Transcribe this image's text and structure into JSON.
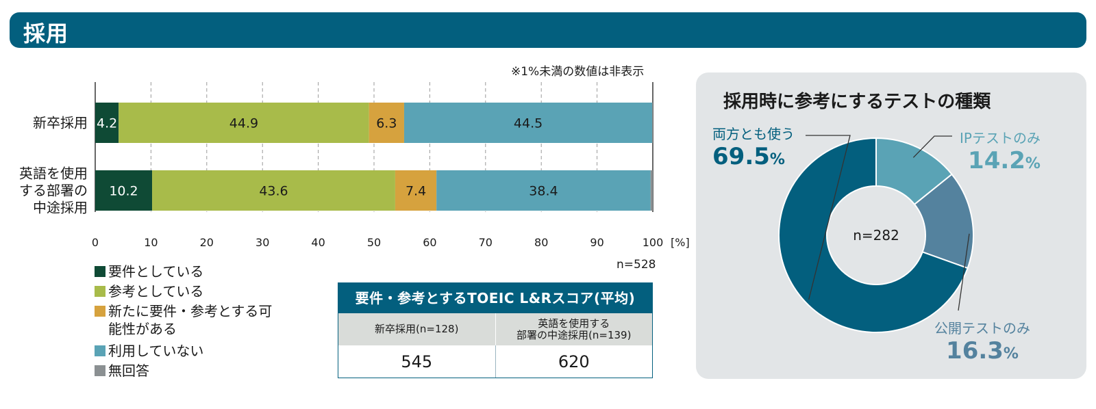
{
  "header": {
    "title": "採用"
  },
  "note": "※1%未満の数値は非表示",
  "n_label": "n=528",
  "chart_data": [
    {
      "type": "bar",
      "stacked": true,
      "orientation": "horizontal",
      "categories": [
        "新卒採用",
        "英語を使用する部署の中途採用"
      ],
      "category_lines": [
        [
          "新卒採用"
        ],
        [
          "英語を使用",
          "する部署の",
          "中途採用"
        ]
      ],
      "series": [
        {
          "name": "要件としている",
          "color": "#0f4a35",
          "text_color": "#ffffff",
          "values": [
            4.2,
            10.2
          ]
        },
        {
          "name": "参考としている",
          "color": "#a8bb4a",
          "text_color": "#1a1a1a",
          "values": [
            44.9,
            43.6
          ]
        },
        {
          "name": "新たに要件・参考とする可能性がある",
          "color": "#d6a23e",
          "text_color": "#1a1a1a",
          "values": [
            6.3,
            7.4
          ]
        },
        {
          "name": "利用していない",
          "color": "#5aa3b5",
          "text_color": "#1a1a1a",
          "values": [
            44.5,
            38.4
          ]
        },
        {
          "name": "無回答",
          "color": "#8b9092",
          "text_color": "#1a1a1a",
          "values": [
            0.1,
            0.4
          ],
          "hide_label": true
        }
      ],
      "xlim": [
        0,
        100
      ],
      "xticks": [
        0,
        10,
        20,
        30,
        40,
        50,
        60,
        70,
        80,
        90,
        100
      ],
      "x_unit": "[%]",
      "grid": "dashed-vertical",
      "legend_position": "bottom-left"
    },
    {
      "type": "pie",
      "donut": true,
      "title": "採用時に参考にするテストの種類",
      "center_label": "n=282",
      "slices": [
        {
          "name": "IPテストのみ",
          "value": 14.2,
          "color": "#5aa3b5",
          "label_color": "#5aa3b5"
        },
        {
          "name": "公開テストのみ",
          "value": 16.3,
          "color": "#54829e",
          "label_color": "#54829e"
        },
        {
          "name": "両方とも使う",
          "value": 69.5,
          "color": "#035f7e",
          "label_color": "#035f7e"
        }
      ],
      "unit": "%"
    }
  ],
  "score_table": {
    "title": "要件・参考とするTOEIC L&Rスコア(平均)",
    "col1_header": "新卒採用(n=128)",
    "col2_header_line1": "英語を使用する",
    "col2_header_line2": "部署の中途採用(n=139)",
    "col1_value": "545",
    "col2_value": "620"
  }
}
